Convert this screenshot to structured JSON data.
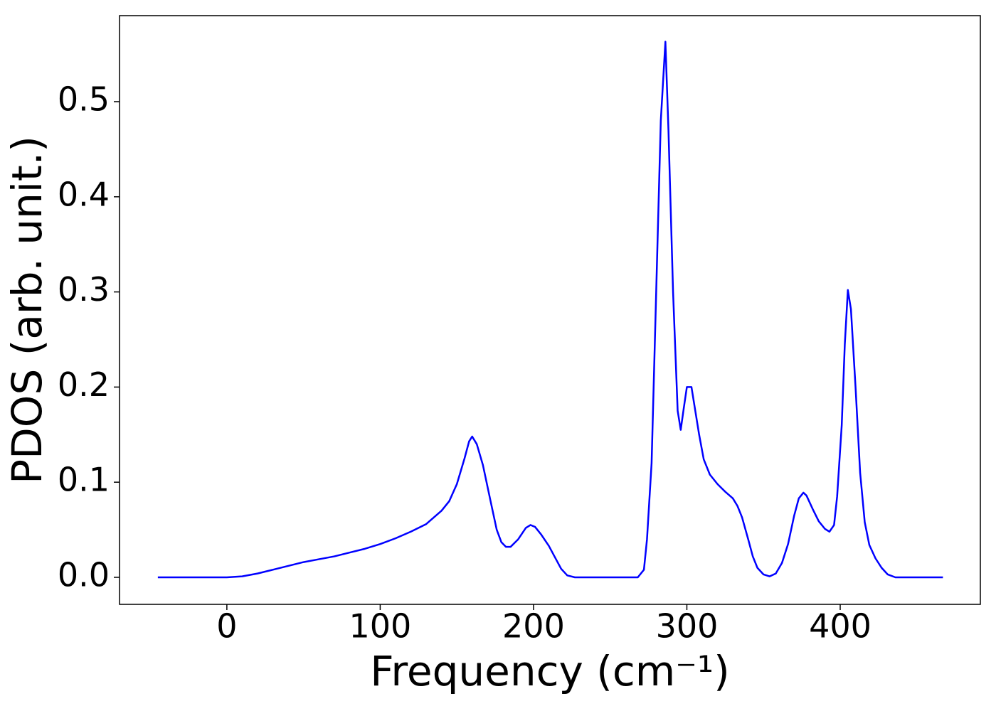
{
  "chart_data": {
    "type": "line",
    "xlabel": "Frequency (cm⁻¹)",
    "ylabel": "PDOS (arb. unit.)",
    "xlim": [
      -70,
      491.4
    ],
    "ylim": [
      -0.0284,
      0.5904
    ],
    "xticks": [
      0,
      100,
      200,
      300,
      400
    ],
    "yticks": [
      {
        "value": 0,
        "label": "0.0"
      },
      0.1,
      0.2,
      0.3,
      0.4,
      0.5
    ],
    "x": [
      -45,
      0,
      10,
      20,
      30,
      40,
      50,
      60,
      70,
      80,
      90,
      100,
      110,
      120,
      130,
      140,
      145,
      150,
      155,
      158,
      160,
      163,
      167,
      172,
      176,
      179,
      182,
      185,
      190,
      195,
      198,
      201,
      205,
      210,
      215,
      218,
      222,
      227,
      268,
      272,
      274,
      277,
      280,
      283,
      286,
      288,
      291,
      294,
      296,
      298,
      300,
      303,
      305,
      308,
      311,
      315,
      320,
      325,
      330,
      333,
      336,
      340,
      343,
      346,
      350,
      354,
      358,
      362,
      366,
      370,
      373,
      376,
      378,
      382,
      386,
      390,
      393,
      396,
      398,
      401,
      403,
      405,
      407,
      410,
      413,
      416,
      419,
      423,
      427,
      431,
      436,
      467
    ],
    "series": [
      {
        "name": "PDOS",
        "color": "#0000ff",
        "values": [
          0,
          0,
          0.001,
          0.004,
          0.008,
          0.012,
          0.016,
          0.019,
          0.022,
          0.026,
          0.03,
          0.035,
          0.041,
          0.048,
          0.056,
          0.07,
          0.08,
          0.098,
          0.125,
          0.143,
          0.148,
          0.14,
          0.118,
          0.08,
          0.05,
          0.037,
          0.032,
          0.032,
          0.04,
          0.052,
          0.055,
          0.053,
          0.045,
          0.033,
          0.018,
          0.009,
          0.002,
          0,
          0,
          0.008,
          0.04,
          0.12,
          0.3,
          0.48,
          0.563,
          0.47,
          0.3,
          0.175,
          0.155,
          0.178,
          0.2,
          0.2,
          0.18,
          0.15,
          0.124,
          0.108,
          0.098,
          0.09,
          0.083,
          0.075,
          0.063,
          0.04,
          0.022,
          0.01,
          0.003,
          0.001,
          0.004,
          0.015,
          0.035,
          0.065,
          0.083,
          0.089,
          0.086,
          0.072,
          0.059,
          0.051,
          0.048,
          0.055,
          0.085,
          0.16,
          0.245,
          0.302,
          0.282,
          0.2,
          0.11,
          0.058,
          0.034,
          0.02,
          0.01,
          0.003,
          0,
          0
        ]
      }
    ]
  }
}
